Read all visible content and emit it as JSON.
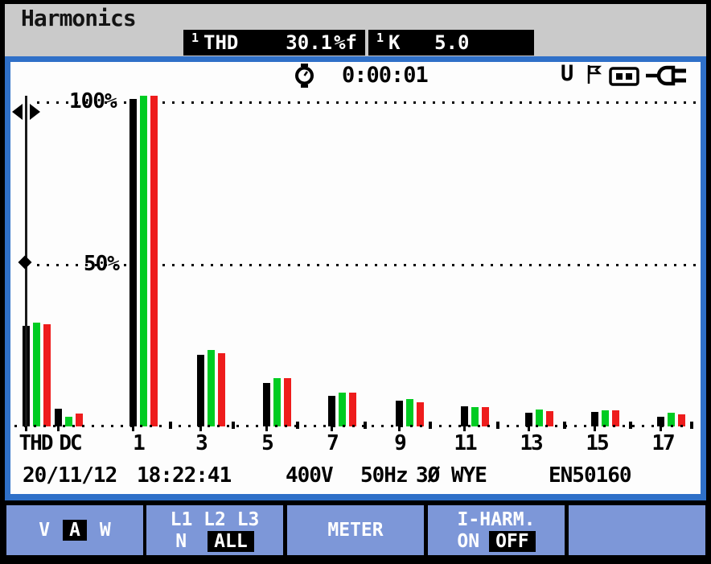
{
  "header": {
    "title": "Harmonics"
  },
  "readouts": [
    {
      "channel": "1",
      "label": "THD",
      "value": "30.1",
      "unit": "%f"
    },
    {
      "channel": "1",
      "label": "K",
      "value": "5.0",
      "unit": ""
    }
  ],
  "topbar": {
    "timer_icon": "stopwatch-icon",
    "elapsed": "0:00:01",
    "voltage_indicator": "U",
    "icons": [
      "flag-icon",
      "battery-icon",
      "power-plug-icon"
    ]
  },
  "chart_data": {
    "type": "bar",
    "title": "Harmonics bar graph (% of fundamental)",
    "categories": [
      "THD",
      "DC",
      "1",
      "3",
      "5",
      "7",
      "9",
      "11",
      "13",
      "15",
      "17"
    ],
    "even_tick_positions": [
      "2",
      "4",
      "6",
      "8",
      "10",
      "12",
      "14",
      "16",
      "18"
    ],
    "series": [
      {
        "name": "L1",
        "color": "#000000",
        "values": [
          31,
          5.5,
          101,
          22,
          13.5,
          9.5,
          8,
          6.2,
          4.2,
          4.5,
          3
        ]
      },
      {
        "name": "L2",
        "color": "#00cc22",
        "values": [
          32,
          3,
          102,
          23.5,
          15,
          10.5,
          8.5,
          6,
          5.2,
          5,
          4.2
        ]
      },
      {
        "name": "L3",
        "color": "#ee1c1c",
        "values": [
          31.5,
          4,
          102,
          22.5,
          15,
          10.5,
          7.5,
          6,
          4.7,
          5,
          3.7
        ]
      }
    ],
    "ylabel": "%",
    "ylim": [
      0,
      105
    ],
    "grid": true,
    "gridlines": [
      {
        "label": "100%",
        "value": 100
      },
      {
        "label": "50%",
        "value": 50
      }
    ],
    "cursor": {
      "category": "THD",
      "markers": [
        "left-right-arrows",
        "diamond"
      ]
    }
  },
  "footer": {
    "date": "20/11/12",
    "time": "18:22:41",
    "voltage": "400V",
    "frequency": "50Hz",
    "phase": "3Ø WYE",
    "standard": "EN50160"
  },
  "softkeys": {
    "f1": {
      "options": [
        "V",
        "A",
        "W"
      ],
      "selected": "A"
    },
    "f2": {
      "phases": "L1 L2 L3",
      "neutral": "N",
      "all": "ALL",
      "selected": "ALL"
    },
    "f3": {
      "label": "METER"
    },
    "f4": {
      "label": "I-HARM.",
      "on": "ON",
      "off": "OFF",
      "selected": "OFF"
    },
    "f5": {
      "label": ""
    }
  },
  "colors": {
    "frame_blue": "#2f70c8",
    "softkey_blue": "#7d97d8",
    "header_gray": "#cacaca",
    "phase_l1": "#000000",
    "phase_l2": "#00cc22",
    "phase_l3": "#ee1c1c"
  }
}
